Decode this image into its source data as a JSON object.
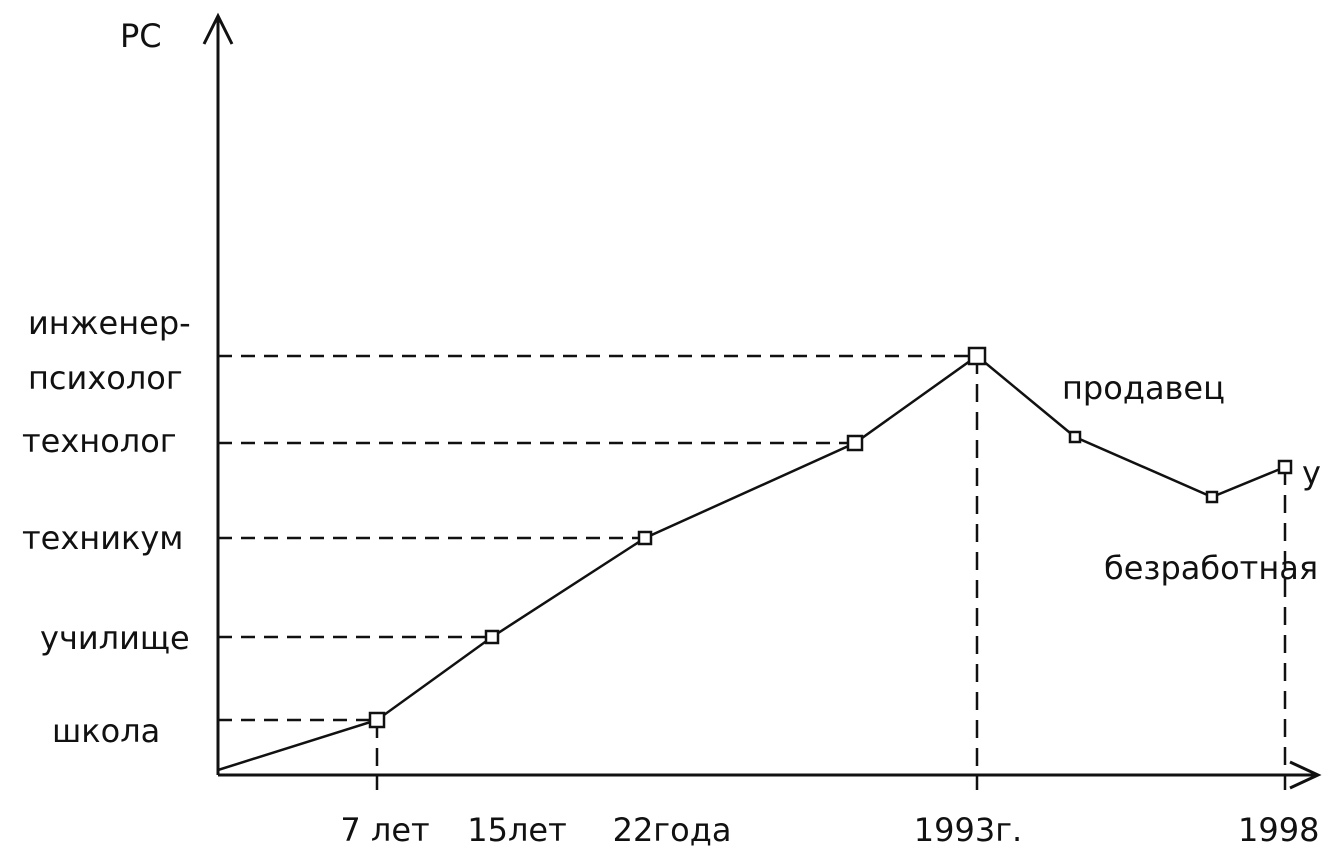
{
  "axes": {
    "y_label": "РС"
  },
  "y_labels": [
    "инженер-",
    "психолог",
    "технолог",
    "техникум",
    "училище",
    "школа"
  ],
  "x_labels": [
    "7 лет",
    "15лет",
    "22года",
    "1993г.",
    "1998"
  ],
  "annotations": [
    "продавец",
    "безработная",
    "у"
  ]
}
